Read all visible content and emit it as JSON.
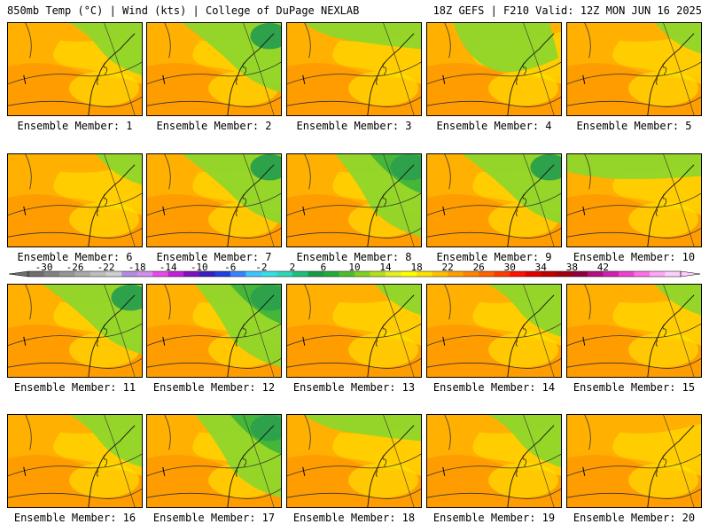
{
  "header": {
    "left": "850mb Temp (°C) | Wind (kts) | College of DuPage NEXLAB",
    "right": "18Z GEFS | F210 Valid: 12Z MON JUN 16 2025"
  },
  "panels": [
    {
      "label": "Ensemble Member: 1",
      "member": 1,
      "green": "ne"
    },
    {
      "label": "Ensemble Member: 2",
      "member": 2,
      "green": "ne-wide"
    },
    {
      "label": "Ensemble Member: 3",
      "member": 3,
      "green": "n"
    },
    {
      "label": "Ensemble Member: 4",
      "member": 4,
      "green": "north-low"
    },
    {
      "label": "Ensemble Member: 5",
      "member": 5,
      "green": "ne-small"
    },
    {
      "label": "Ensemble Member: 6",
      "member": 6,
      "green": "ne-small"
    },
    {
      "label": "Ensemble Member: 7",
      "member": 7,
      "green": "ne-wide"
    },
    {
      "label": "Ensemble Member: 8",
      "member": 8,
      "green": "ne-strong"
    },
    {
      "label": "Ensemble Member: 9",
      "member": 9,
      "green": "ne-wide"
    },
    {
      "label": "Ensemble Member: 10",
      "member": 10,
      "green": "north-band"
    },
    {
      "label": "Ensemble Member: 11",
      "member": 11,
      "green": "ne-wide"
    },
    {
      "label": "Ensemble Member: 12",
      "member": 12,
      "green": "ne-strong"
    },
    {
      "label": "Ensemble Member: 13",
      "member": 13,
      "green": "ne-small"
    },
    {
      "label": "Ensemble Member: 14",
      "member": 14,
      "green": "ne"
    },
    {
      "label": "Ensemble Member: 15",
      "member": 15,
      "green": "ne-small"
    },
    {
      "label": "Ensemble Member: 16",
      "member": 16,
      "green": "ne"
    },
    {
      "label": "Ensemble Member: 17",
      "member": 17,
      "green": "ne-strong"
    },
    {
      "label": "Ensemble Member: 18",
      "member": 18,
      "green": "n"
    },
    {
      "label": "Ensemble Member: 19",
      "member": 19,
      "green": "ne"
    },
    {
      "label": "Ensemble Member: 20",
      "member": 20,
      "green": "none"
    }
  ],
  "colorbar": {
    "ticks": [
      "-30",
      "-26",
      "-22",
      "-18",
      "-14",
      "-10",
      "-6",
      "-2",
      "2",
      "6",
      "10",
      "14",
      "18",
      "22",
      "26",
      "30",
      "34",
      "38",
      "42"
    ],
    "colors": [
      "#6e6e6e",
      "#828282",
      "#969696",
      "#aaaaaa",
      "#bebebe",
      "#cfcfcf",
      "#b38be0",
      "#d28ef0",
      "#e84ae8",
      "#c020d8",
      "#8010c0",
      "#3a1fc0",
      "#2040e0",
      "#3b80ff",
      "#3ec5ff",
      "#34e0e8",
      "#2fd6b8",
      "#1fbf7e",
      "#179c45",
      "#22aa3a",
      "#4cbe2e",
      "#7ed321",
      "#b4e01c",
      "#e5f020",
      "#ffff00",
      "#ffe000",
      "#ffc000",
      "#ffa000",
      "#ff8400",
      "#ff6000",
      "#ff3a00",
      "#ff1000",
      "#e00000",
      "#c00000",
      "#a00010",
      "#900040",
      "#b01080",
      "#d020b0",
      "#f040d0",
      "#ff70e8",
      "#ffa8f8",
      "#ffd0ff"
    ]
  }
}
